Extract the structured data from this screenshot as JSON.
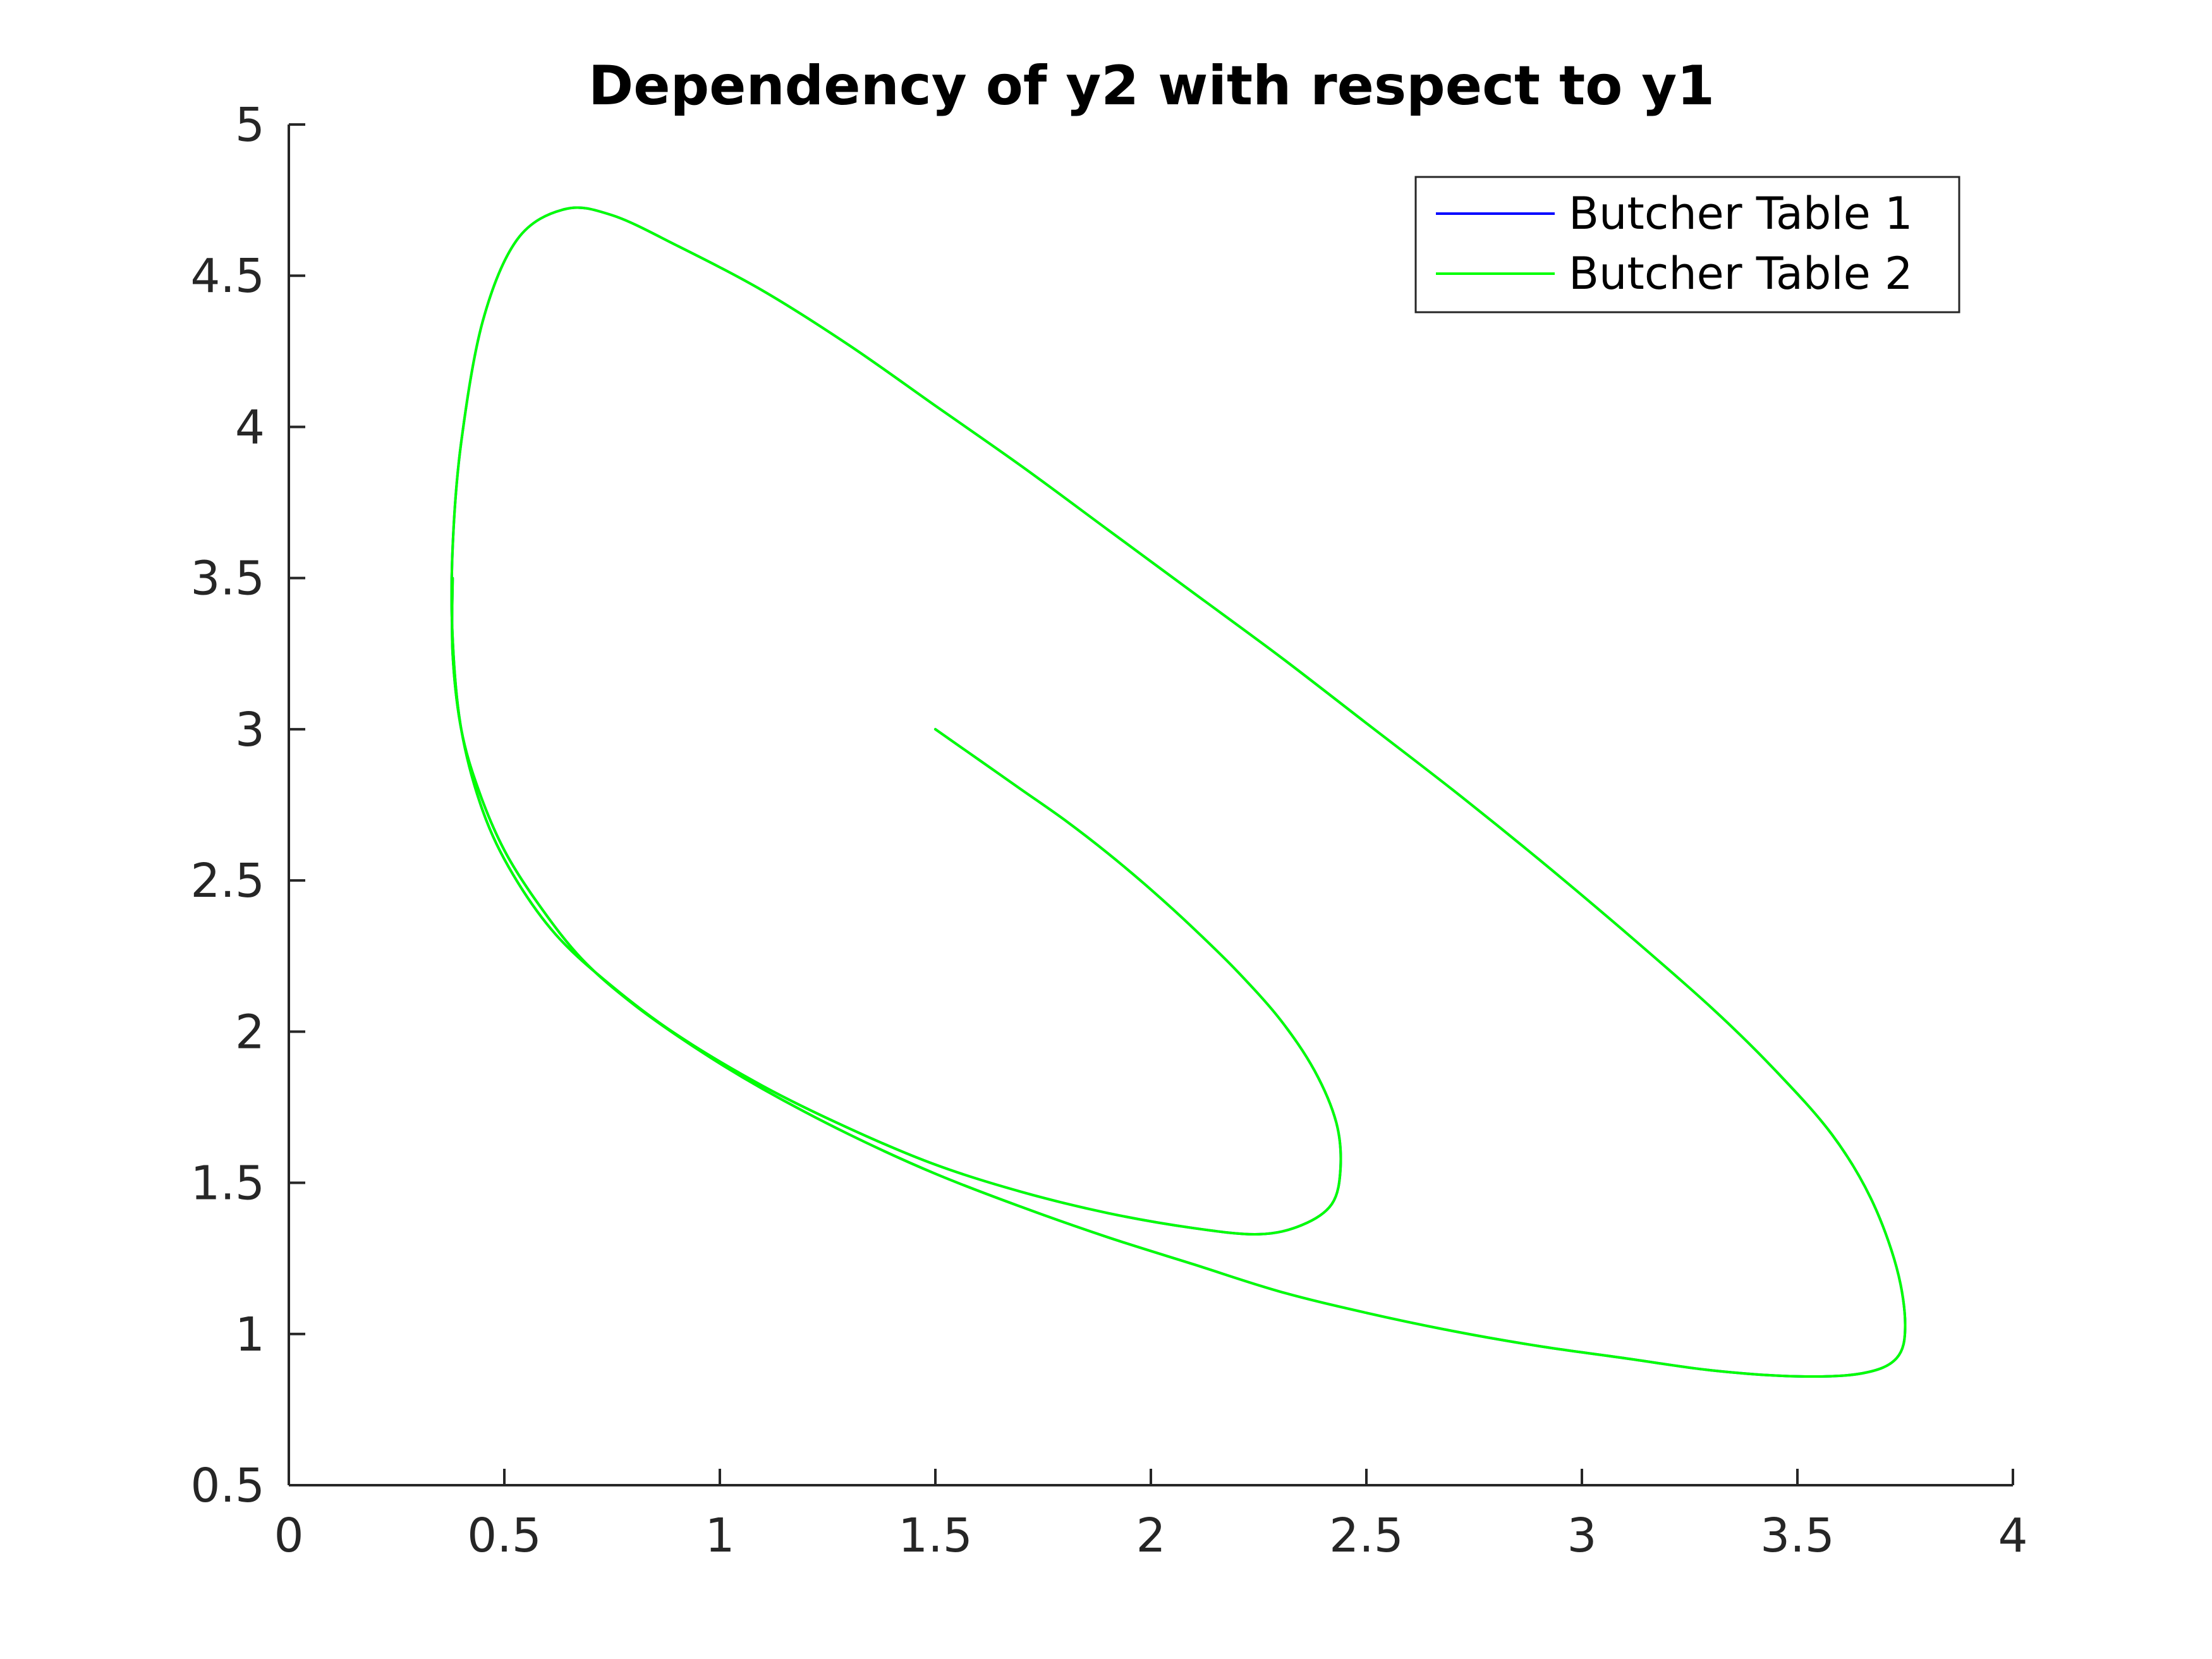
{
  "chart_data": {
    "type": "line",
    "title": "Dependency of y2 with respect to y1",
    "xlabel": "",
    "ylabel": "",
    "xlim": [
      0,
      4
    ],
    "ylim": [
      0.5,
      5
    ],
    "xticks": [
      "0",
      "0.5",
      "1",
      "1.5",
      "2",
      "2.5",
      "3",
      "3.5",
      "4"
    ],
    "yticks": [
      "0.5",
      "1",
      "1.5",
      "2",
      "2.5",
      "3",
      "3.5",
      "4",
      "4.5",
      "5"
    ],
    "grid": false,
    "legend_position": "top-right",
    "series": [
      {
        "name": "Butcher Table 1",
        "color": "#0000ff",
        "x": [
          1.5,
          1.6,
          1.7,
          1.8,
          1.9,
          2.0,
          2.1,
          2.2,
          2.3,
          2.38,
          2.43,
          2.44,
          2.42,
          2.35,
          2.25,
          2.1,
          1.9,
          1.7,
          1.5,
          1.3,
          1.1,
          0.9,
          0.75,
          0.62,
          0.52,
          0.45,
          0.4,
          0.38,
          0.38,
          0.4,
          0.45,
          0.53,
          0.64,
          0.75,
          0.9,
          1.1,
          1.3,
          1.5,
          1.7,
          1.9,
          2.1,
          2.3,
          2.5,
          2.7,
          2.9,
          3.1,
          3.3,
          3.45,
          3.58,
          3.67,
          3.73,
          3.75,
          3.73,
          3.65,
          3.5,
          3.3,
          3.1,
          2.9,
          2.7,
          2.5,
          2.3,
          2.1,
          1.9,
          1.7,
          1.5,
          1.3,
          1.1,
          0.95,
          0.8,
          0.68,
          0.58,
          0.5,
          0.44,
          0.4,
          0.38,
          0.38
        ],
        "y": [
          3.0,
          2.9,
          2.8,
          2.7,
          2.59,
          2.47,
          2.34,
          2.2,
          2.04,
          1.87,
          1.7,
          1.55,
          1.43,
          1.36,
          1.33,
          1.35,
          1.4,
          1.47,
          1.56,
          1.68,
          1.82,
          1.99,
          2.15,
          2.32,
          2.52,
          2.73,
          3.0,
          3.3,
          3.6,
          3.95,
          4.35,
          4.62,
          4.72,
          4.7,
          4.6,
          4.45,
          4.27,
          4.07,
          3.87,
          3.66,
          3.45,
          3.24,
          3.02,
          2.8,
          2.57,
          2.33,
          2.08,
          1.87,
          1.66,
          1.45,
          1.22,
          1.03,
          0.92,
          0.87,
          0.86,
          0.88,
          0.92,
          0.96,
          1.01,
          1.07,
          1.14,
          1.23,
          1.32,
          1.42,
          1.53,
          1.66,
          1.81,
          1.94,
          2.09,
          2.24,
          2.42,
          2.6,
          2.8,
          3.0,
          3.25,
          3.5
        ]
      },
      {
        "name": "Butcher Table 2",
        "color": "#00ff00",
        "x": [
          1.5,
          1.6,
          1.7,
          1.8,
          1.9,
          2.0,
          2.1,
          2.2,
          2.3,
          2.38,
          2.43,
          2.44,
          2.42,
          2.35,
          2.25,
          2.1,
          1.9,
          1.7,
          1.5,
          1.3,
          1.1,
          0.9,
          0.75,
          0.62,
          0.52,
          0.45,
          0.4,
          0.38,
          0.38,
          0.4,
          0.45,
          0.53,
          0.64,
          0.75,
          0.9,
          1.1,
          1.3,
          1.5,
          1.7,
          1.9,
          2.1,
          2.3,
          2.5,
          2.7,
          2.9,
          3.1,
          3.3,
          3.45,
          3.58,
          3.67,
          3.73,
          3.75,
          3.73,
          3.65,
          3.5,
          3.3,
          3.1,
          2.9,
          2.7,
          2.5,
          2.3,
          2.1,
          1.9,
          1.7,
          1.5,
          1.3,
          1.1,
          0.95,
          0.8,
          0.68,
          0.58,
          0.5,
          0.44,
          0.4,
          0.38,
          0.38
        ],
        "y": [
          3.0,
          2.9,
          2.8,
          2.7,
          2.59,
          2.47,
          2.34,
          2.2,
          2.04,
          1.87,
          1.7,
          1.55,
          1.43,
          1.36,
          1.33,
          1.35,
          1.4,
          1.47,
          1.56,
          1.68,
          1.82,
          1.99,
          2.15,
          2.32,
          2.52,
          2.73,
          3.0,
          3.3,
          3.6,
          3.95,
          4.35,
          4.62,
          4.72,
          4.7,
          4.6,
          4.45,
          4.27,
          4.07,
          3.87,
          3.66,
          3.45,
          3.24,
          3.02,
          2.8,
          2.57,
          2.33,
          2.08,
          1.87,
          1.66,
          1.45,
          1.22,
          1.03,
          0.92,
          0.87,
          0.86,
          0.88,
          0.92,
          0.96,
          1.01,
          1.07,
          1.14,
          1.23,
          1.32,
          1.42,
          1.53,
          1.66,
          1.81,
          1.94,
          2.09,
          2.24,
          2.42,
          2.6,
          2.8,
          3.0,
          3.25,
          3.5
        ]
      }
    ]
  }
}
